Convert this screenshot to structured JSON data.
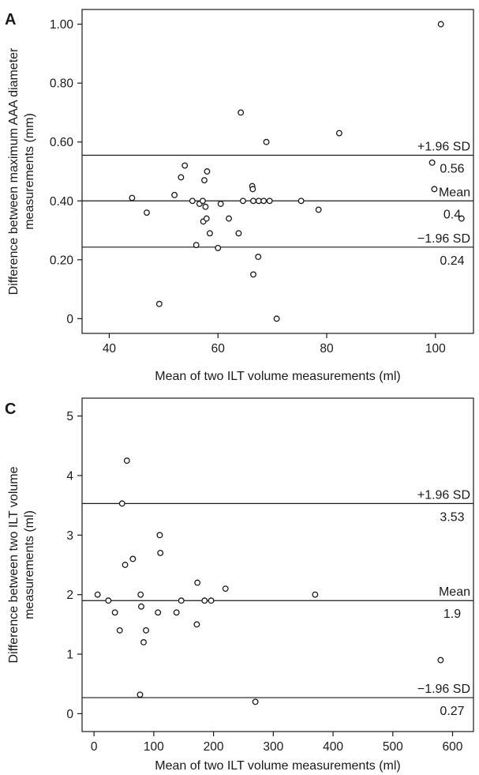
{
  "chart_data": [
    {
      "type": "scatter",
      "panel": "A",
      "xlabel": "Mean of two ILT volume measurements (ml)",
      "ylabel": [
        "Difference between maximum AAA diameter",
        "measurements (mm)"
      ],
      "xlim": [
        35,
        107
      ],
      "ylim": [
        -0.05,
        1.05
      ],
      "x_ticks": [
        40,
        60,
        80,
        100
      ],
      "x_tick_labels": [
        "40",
        "60",
        "80",
        "100"
      ],
      "y_ticks": [
        0,
        0.2,
        0.4,
        0.6,
        0.8,
        1.0
      ],
      "y_tick_labels": [
        "0",
        "0.20",
        "0.40",
        "0.60",
        "0.80",
        "1.00"
      ],
      "reference_lines": [
        {
          "name": "+1.96 SD",
          "value": 0.555,
          "value_label": "0.56"
        },
        {
          "name": "Mean",
          "value": 0.4,
          "value_label": "0.4"
        },
        {
          "name": "−1.96 SD",
          "value": 0.243,
          "value_label": "0.24"
        }
      ],
      "points": [
        [
          44.2,
          0.41
        ],
        [
          46.9,
          0.36
        ],
        [
          49.2,
          0.05
        ],
        [
          52.0,
          0.42
        ],
        [
          53.2,
          0.48
        ],
        [
          53.9,
          0.52
        ],
        [
          55.3,
          0.4
        ],
        [
          56.0,
          0.25
        ],
        [
          56.6,
          0.39
        ],
        [
          57.2,
          0.4
        ],
        [
          57.3,
          0.33
        ],
        [
          57.5,
          0.47
        ],
        [
          57.7,
          0.38
        ],
        [
          57.9,
          0.34
        ],
        [
          58.0,
          0.5
        ],
        [
          58.5,
          0.29
        ],
        [
          60.0,
          0.24
        ],
        [
          60.5,
          0.39
        ],
        [
          62.0,
          0.34
        ],
        [
          63.8,
          0.29
        ],
        [
          64.2,
          0.7
        ],
        [
          64.6,
          0.4
        ],
        [
          66.3,
          0.45
        ],
        [
          66.4,
          0.44
        ],
        [
          66.5,
          0.4
        ],
        [
          66.5,
          0.15
        ],
        [
          67.4,
          0.21
        ],
        [
          67.5,
          0.4
        ],
        [
          68.4,
          0.4
        ],
        [
          68.9,
          0.6
        ],
        [
          69.5,
          0.4
        ],
        [
          70.8,
          0.0
        ],
        [
          75.3,
          0.4
        ],
        [
          78.5,
          0.37
        ],
        [
          82.3,
          0.63
        ],
        [
          99.4,
          0.53
        ],
        [
          99.8,
          0.44
        ],
        [
          101.0,
          1.0
        ],
        [
          104.8,
          0.34
        ]
      ]
    },
    {
      "type": "scatter",
      "panel": "C",
      "xlabel": "Mean of two ILT volume measurements (ml)",
      "ylabel": [
        "Difference between two ILT volume",
        "measurements (ml)"
      ],
      "xlim": [
        -20,
        635
      ],
      "ylim": [
        -0.3,
        5.3
      ],
      "x_ticks": [
        0,
        100,
        200,
        300,
        400,
        500,
        600
      ],
      "x_tick_labels": [
        "0",
        "100",
        "200",
        "300",
        "400",
        "500",
        "600"
      ],
      "y_ticks": [
        0,
        1,
        2,
        3,
        4,
        5
      ],
      "y_tick_labels": [
        "0",
        "1",
        "2",
        "3",
        "4",
        "5"
      ],
      "reference_lines": [
        {
          "name": "+1.96 SD",
          "value": 3.53,
          "value_label": "3.53"
        },
        {
          "name": "Mean",
          "value": 1.9,
          "value_label": "1.9"
        },
        {
          "name": "−1.96 SD",
          "value": 0.27,
          "value_label": "0.27"
        }
      ],
      "points": [
        [
          6,
          2.0
        ],
        [
          24,
          1.9
        ],
        [
          35,
          1.7
        ],
        [
          43,
          1.4
        ],
        [
          47,
          3.53
        ],
        [
          52,
          2.5
        ],
        [
          55,
          4.25
        ],
        [
          65,
          2.6
        ],
        [
          77,
          0.32
        ],
        [
          78,
          2.0
        ],
        [
          79,
          1.8
        ],
        [
          83,
          1.2
        ],
        [
          87,
          1.4
        ],
        [
          107,
          1.7
        ],
        [
          110,
          3.0
        ],
        [
          111,
          2.7
        ],
        [
          138,
          1.7
        ],
        [
          146,
          1.9
        ],
        [
          172,
          1.5
        ],
        [
          173,
          2.2
        ],
        [
          185,
          1.9
        ],
        [
          196,
          1.9
        ],
        [
          220,
          2.1
        ],
        [
          270,
          0.2
        ],
        [
          370,
          2.0
        ],
        [
          580,
          0.9
        ]
      ]
    }
  ]
}
